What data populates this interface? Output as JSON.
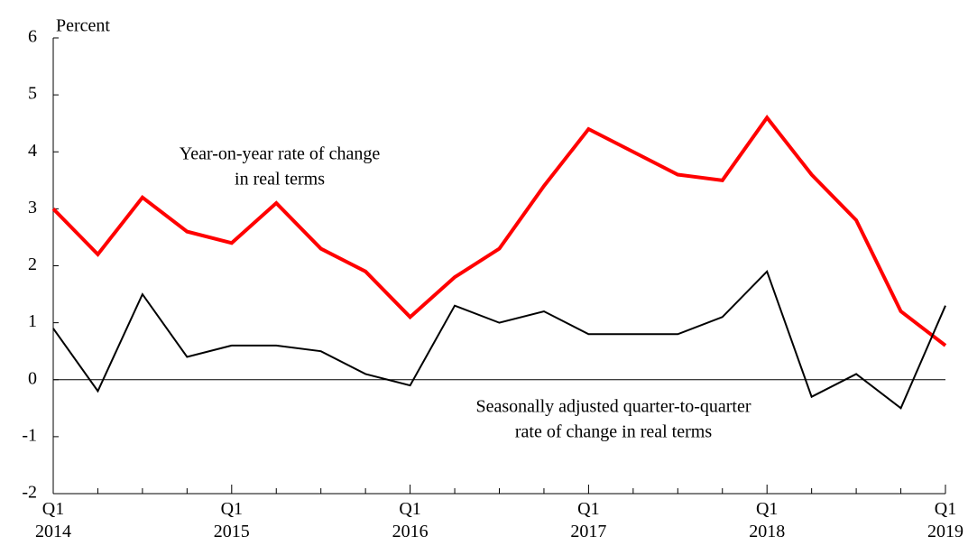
{
  "chart_data": {
    "type": "line",
    "y_label": "Percent",
    "categories": [
      [
        "Q1",
        "2014"
      ],
      null,
      null,
      null,
      [
        "Q1",
        "2015"
      ],
      null,
      null,
      null,
      [
        "Q1",
        "2016"
      ],
      null,
      null,
      null,
      [
        "Q1",
        "2017"
      ],
      null,
      null,
      null,
      [
        "Q1",
        "2018"
      ],
      null,
      null,
      null,
      [
        "Q1",
        "2019"
      ]
    ],
    "series": [
      {
        "color": "#ff0000",
        "values": [
          3.0,
          2.2,
          3.2,
          2.6,
          2.4,
          3.1,
          2.3,
          1.9,
          1.1,
          1.8,
          2.3,
          3.4,
          4.4,
          4.0,
          3.6,
          3.5,
          4.6,
          3.6,
          2.8,
          1.2,
          0.6
        ]
      },
      {
        "color": "#000000",
        "values": [
          0.9,
          -0.2,
          1.5,
          0.4,
          0.6,
          0.6,
          0.5,
          0.1,
          -0.1,
          1.3,
          1.0,
          1.2,
          0.8,
          0.8,
          0.8,
          1.1,
          1.9,
          -0.3,
          0.1,
          -0.5,
          1.3
        ]
      }
    ],
    "annotations": [
      [
        "Year-on-year rate of change",
        "in real terms"
      ],
      [
        "Seasonally adjusted quarter-to-quarter",
        "rate of change in real terms"
      ]
    ],
    "ylim": [
      -2,
      6
    ],
    "yticks": [
      -2,
      -1,
      0,
      1,
      2,
      3,
      4,
      5,
      6
    ]
  }
}
